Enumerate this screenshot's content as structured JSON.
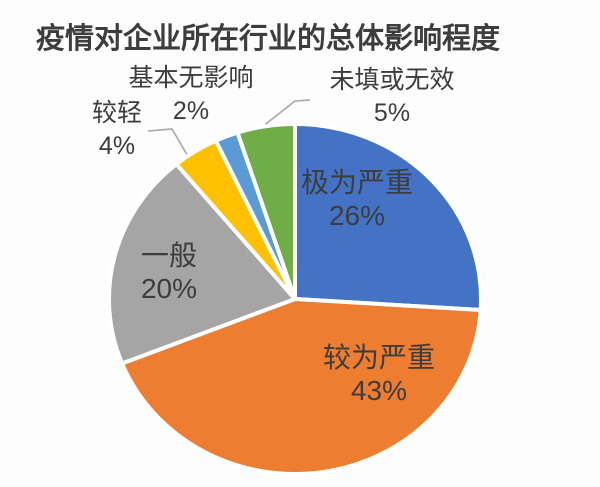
{
  "title": "疫情对企业所在行业的总体影响程度",
  "colors": {
    "text": "#3d3d3d",
    "leader_line": "#a6a6a6",
    "slice_border": "#ffffff",
    "background": "#fdfdfd"
  },
  "chart_data": {
    "type": "pie",
    "title": "疫情对企业所在行业的总体影响程度",
    "start_angle_deg": 0,
    "direction": "clockwise",
    "legend": "none",
    "data_labels": "category name + percentage",
    "slices": [
      {
        "id": "extremely-severe",
        "label": "极为严重",
        "value": 26,
        "pct_label": "26%",
        "color": "#4472C4",
        "label_position": "inside"
      },
      {
        "id": "relatively-severe",
        "label": "较为严重",
        "value": 43,
        "pct_label": "43%",
        "color": "#ED7D31",
        "label_position": "inside"
      },
      {
        "id": "moderate",
        "label": "一般",
        "value": 20,
        "pct_label": "20%",
        "color": "#A5A5A5",
        "label_position": "inside"
      },
      {
        "id": "slight",
        "label": "较轻",
        "value": 4,
        "pct_label": "4%",
        "color": "#FFC000",
        "label_position": "outside"
      },
      {
        "id": "basically-no-impact",
        "label": "基本无影响",
        "value": 2,
        "pct_label": "2%",
        "color": "#5B9BD5",
        "label_position": "outside"
      },
      {
        "id": "not-filled-or-invalid",
        "label": "未填或无效",
        "value": 5,
        "pct_label": "5%",
        "color": "#70AD47",
        "label_position": "outside"
      }
    ]
  }
}
